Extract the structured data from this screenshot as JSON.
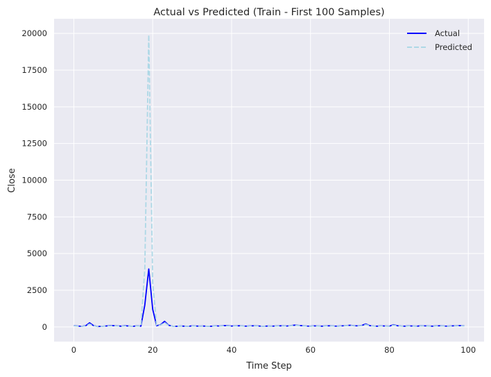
{
  "chart_data": {
    "type": "line",
    "title": "Actual vs Predicted (Train - First 100 Samples)",
    "xlabel": "Time Step",
    "ylabel": "Close",
    "xlim": [
      -5,
      104
    ],
    "ylim": [
      -1000,
      21000
    ],
    "xticks": [
      0,
      20,
      40,
      60,
      80,
      100
    ],
    "yticks": [
      0,
      2500,
      5000,
      7500,
      10000,
      12500,
      15000,
      17500,
      20000
    ],
    "grid": true,
    "legend_position": "top-right",
    "x": [
      0,
      1,
      2,
      3,
      4,
      5,
      6,
      7,
      8,
      9,
      10,
      11,
      12,
      13,
      14,
      15,
      16,
      17,
      18,
      19,
      20,
      21,
      22,
      23,
      24,
      25,
      26,
      27,
      28,
      29,
      30,
      31,
      32,
      33,
      34,
      35,
      36,
      37,
      38,
      39,
      40,
      41,
      42,
      43,
      44,
      45,
      46,
      47,
      48,
      49,
      50,
      51,
      52,
      53,
      54,
      55,
      56,
      57,
      58,
      59,
      60,
      61,
      62,
      63,
      64,
      65,
      66,
      67,
      68,
      69,
      70,
      71,
      72,
      73,
      74,
      75,
      76,
      77,
      78,
      79,
      80,
      81,
      82,
      83,
      84,
      85,
      86,
      87,
      88,
      89,
      90,
      91,
      92,
      93,
      94,
      95,
      96,
      97,
      98,
      99
    ],
    "series": [
      {
        "name": "Actual",
        "color": "#0000ff",
        "style": "solid",
        "values": [
          90,
          60,
          40,
          80,
          280,
          90,
          30,
          40,
          60,
          80,
          90,
          70,
          50,
          80,
          60,
          40,
          70,
          50,
          1500,
          3950,
          1200,
          80,
          150,
          380,
          120,
          50,
          40,
          60,
          50,
          40,
          70,
          60,
          50,
          60,
          40,
          50,
          70,
          60,
          90,
          80,
          60,
          70,
          80,
          60,
          50,
          70,
          80,
          60,
          40,
          60,
          50,
          60,
          70,
          80,
          60,
          90,
          120,
          100,
          80,
          60,
          50,
          70,
          60,
          50,
          70,
          80,
          60,
          50,
          70,
          90,
          110,
          80,
          70,
          100,
          200,
          90,
          60,
          50,
          70,
          60,
          50,
          150,
          80,
          60,
          50,
          70,
          60,
          50,
          80,
          70,
          60,
          50,
          70,
          80,
          60,
          50,
          70,
          80,
          90,
          70
        ]
      },
      {
        "name": "Predicted",
        "color": "#add8e6",
        "style": "dashed",
        "values": [
          70,
          50,
          40,
          60,
          200,
          70,
          30,
          40,
          50,
          60,
          70,
          60,
          50,
          60,
          50,
          40,
          60,
          50,
          4000,
          19900,
          3000,
          80,
          120,
          300,
          100,
          50,
          40,
          50,
          40,
          40,
          60,
          50,
          40,
          50,
          40,
          50,
          60,
          50,
          70,
          60,
          50,
          60,
          70,
          50,
          40,
          60,
          70,
          50,
          40,
          50,
          40,
          50,
          60,
          70,
          50,
          80,
          100,
          90,
          70,
          50,
          40,
          60,
          50,
          40,
          60,
          70,
          50,
          40,
          60,
          80,
          100,
          70,
          60,
          90,
          160,
          80,
          50,
          40,
          60,
          50,
          40,
          120,
          70,
          50,
          40,
          60,
          50,
          40,
          70,
          60,
          50,
          40,
          60,
          70,
          50,
          40,
          60,
          70,
          80,
          60
        ]
      }
    ]
  }
}
